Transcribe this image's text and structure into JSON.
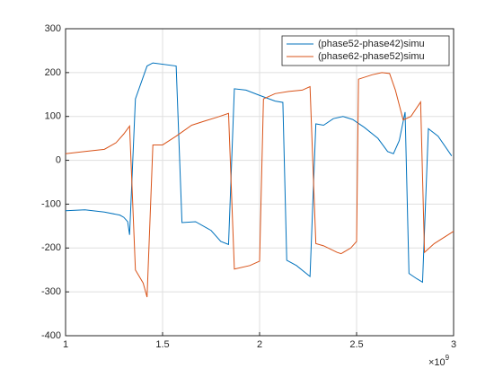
{
  "chart_data": {
    "type": "line",
    "x_multiplier": {
      "base": "×10",
      "exponent": "9"
    },
    "xlim": [
      1,
      3
    ],
    "xticks": [
      1,
      1.5,
      2,
      2.5,
      3
    ],
    "ylim": [
      -400,
      300
    ],
    "yticks": [
      -400,
      -300,
      -200,
      -100,
      0,
      100,
      200,
      300
    ],
    "grid": true,
    "legend_position": "top-right",
    "series": [
      {
        "name": "(phase52-phase42)simu",
        "color": "#0072BD",
        "x": [
          1,
          1.1,
          1.2,
          1.28,
          1.3,
          1.32,
          1.33,
          1.36,
          1.42,
          1.45,
          1.57,
          1.6,
          1.67,
          1.75,
          1.8,
          1.84,
          1.87,
          1.93,
          2.0,
          2.08,
          2.12,
          2.14,
          2.19,
          2.26,
          2.29,
          2.33,
          2.38,
          2.43,
          2.48,
          2.54,
          2.61,
          2.66,
          2.69,
          2.72,
          2.75,
          2.77,
          2.81,
          2.84,
          2.87,
          2.92,
          2.99
        ],
        "values": [
          -115,
          -113,
          -118,
          -125,
          -130,
          -140,
          -170,
          140,
          215,
          222,
          215,
          -142,
          -140,
          -160,
          -185,
          -192,
          163,
          160,
          148,
          135,
          132,
          -228,
          -240,
          -265,
          83,
          80,
          95,
          100,
          93,
          75,
          50,
          20,
          15,
          45,
          110,
          -258,
          -270,
          -278,
          72,
          55,
          10
        ]
      },
      {
        "name": "(phase62-phase52)simu",
        "color": "#D95319",
        "x": [
          1,
          1.1,
          1.2,
          1.26,
          1.3,
          1.33,
          1.36,
          1.4,
          1.42,
          1.45,
          1.5,
          1.57,
          1.65,
          1.72,
          1.78,
          1.84,
          1.87,
          1.95,
          2.0,
          2.02,
          2.08,
          2.15,
          2.22,
          2.26,
          2.29,
          2.33,
          2.4,
          2.42,
          2.47,
          2.5,
          2.51,
          2.58,
          2.63,
          2.67,
          2.7,
          2.74,
          2.78,
          2.83,
          2.85,
          2.9,
          3.0
        ],
        "values": [
          15,
          20,
          25,
          40,
          60,
          78,
          -250,
          -280,
          -312,
          35,
          35,
          55,
          80,
          90,
          98,
          107,
          -248,
          -240,
          -230,
          140,
          152,
          157,
          160,
          168,
          -190,
          -195,
          -210,
          -213,
          -200,
          -185,
          185,
          195,
          200,
          198,
          160,
          92,
          100,
          133,
          -210,
          -190,
          -162
        ]
      }
    ]
  }
}
